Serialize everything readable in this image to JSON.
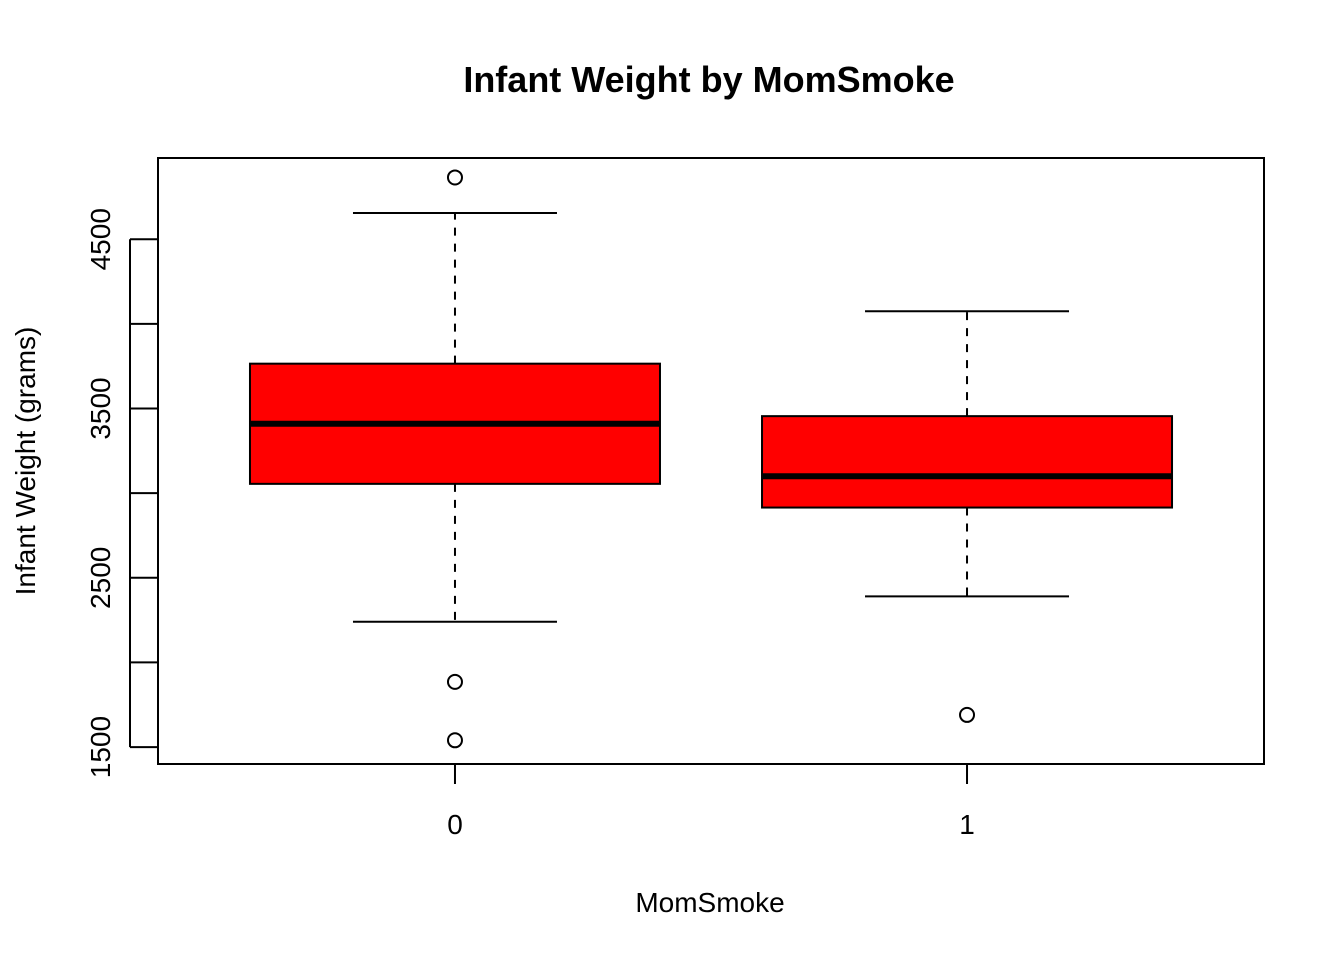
{
  "chart_data": {
    "type": "boxplot",
    "title": "Infant Weight by MomSmoke",
    "xlabel": "MomSmoke",
    "ylabel": "Infant Weight (grams)",
    "ylim": [
      1400,
      4980
    ],
    "y_ticks": [
      1500,
      2000,
      2500,
      3000,
      3500,
      4000,
      4500
    ],
    "y_tick_labels": [
      "1500",
      "",
      "2500",
      "",
      "3500",
      "",
      "4500"
    ],
    "categories": [
      "0",
      "1"
    ],
    "box_color": "#ff0000",
    "groups": [
      {
        "category": "0",
        "whisker_low": 2240,
        "q1": 3055,
        "median": 3410,
        "q3": 3765,
        "whisker_high": 4655,
        "outliers": [
          4865,
          1885,
          1540
        ]
      },
      {
        "category": "1",
        "whisker_low": 2390,
        "q1": 2915,
        "median": 3100,
        "q3": 3455,
        "whisker_high": 4075,
        "outliers": [
          1690
        ]
      }
    ],
    "grid": false,
    "legend": "none"
  }
}
